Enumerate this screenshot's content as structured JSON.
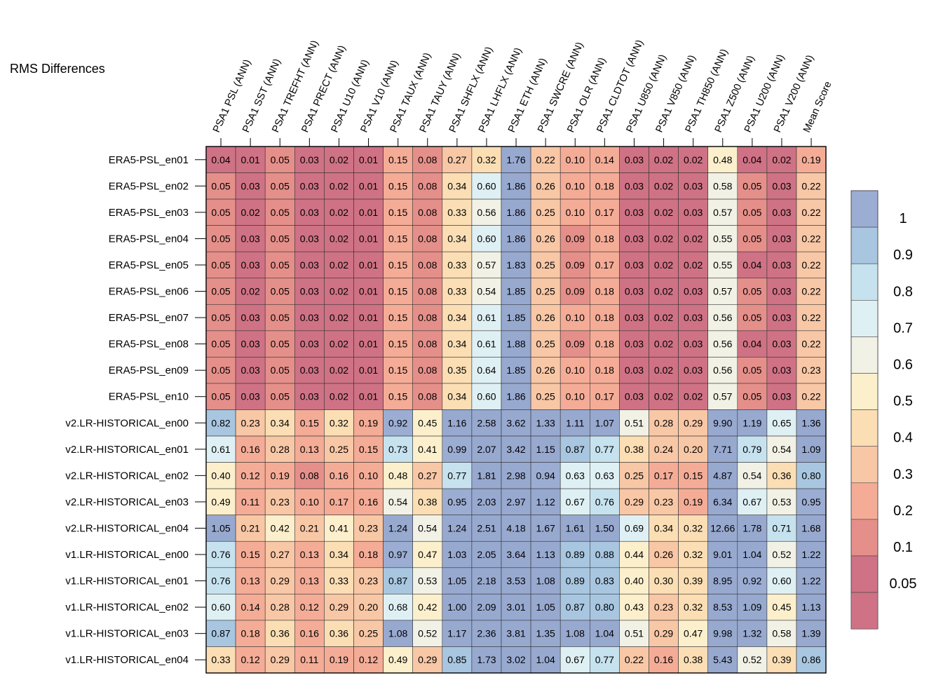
{
  "chart_data": {
    "type": "heatmap",
    "title": "RMS Differences",
    "columns": [
      "PSA1 PSL (ANN)",
      "PSA1 SST (ANN)",
      "PSA1 TREFHT (ANN)",
      "PSA1 PRECT (ANN)",
      "PSA1 U10 (ANN)",
      "PSA1 V10 (ANN)",
      "PSA1 TAUX (ANN)",
      "PSA1 TAUY (ANN)",
      "PSA1 SHFLX (ANN)",
      "PSA1 LHFLX (ANN)",
      "PSA1 ETH (ANN)",
      "PSA1 SWCRE (ANN)",
      "PSA1 OLR (ANN)",
      "PSA1 CLDTOT (ANN)",
      "PSA1 U850 (ANN)",
      "PSA1 V850 (ANN)",
      "PSA1 TH850 (ANN)",
      "PSA1 Z500 (ANN)",
      "PSA1 U200 (ANN)",
      "PSA1 V200 (ANN)",
      "Mean Score"
    ],
    "rows": [
      "ERA5-PSL_en01",
      "ERA5-PSL_en02",
      "ERA5-PSL_en03",
      "ERA5-PSL_en04",
      "ERA5-PSL_en05",
      "ERA5-PSL_en06",
      "ERA5-PSL_en07",
      "ERA5-PSL_en08",
      "ERA5-PSL_en09",
      "ERA5-PSL_en10",
      "v2.LR-HISTORICAL_en00",
      "v2.LR-HISTORICAL_en01",
      "v2.LR-HISTORICAL_en02",
      "v2.LR-HISTORICAL_en03",
      "v2.LR-HISTORICAL_en04",
      "v1.LR-HISTORICAL_en00",
      "v1.LR-HISTORICAL_en01",
      "v1.LR-HISTORICAL_en02",
      "v1.LR-HISTORICAL_en03",
      "v1.LR-HISTORICAL_en04"
    ],
    "values": [
      [
        "0.04",
        "0.01",
        "0.05",
        "0.03",
        "0.02",
        "0.01",
        "0.15",
        "0.08",
        "0.27",
        "0.32",
        "1.76",
        "0.22",
        "0.10",
        "0.14",
        "0.03",
        "0.02",
        "0.02",
        "0.48",
        "0.04",
        "0.02",
        "0.19"
      ],
      [
        "0.05",
        "0.03",
        "0.05",
        "0.03",
        "0.02",
        "0.01",
        "0.15",
        "0.08",
        "0.34",
        "0.60",
        "1.86",
        "0.26",
        "0.10",
        "0.18",
        "0.03",
        "0.02",
        "0.03",
        "0.58",
        "0.05",
        "0.03",
        "0.22"
      ],
      [
        "0.05",
        "0.02",
        "0.05",
        "0.03",
        "0.02",
        "0.01",
        "0.15",
        "0.08",
        "0.33",
        "0.56",
        "1.86",
        "0.25",
        "0.10",
        "0.17",
        "0.03",
        "0.02",
        "0.03",
        "0.57",
        "0.05",
        "0.03",
        "0.22"
      ],
      [
        "0.05",
        "0.03",
        "0.05",
        "0.03",
        "0.02",
        "0.01",
        "0.15",
        "0.08",
        "0.34",
        "0.60",
        "1.86",
        "0.26",
        "0.09",
        "0.18",
        "0.03",
        "0.02",
        "0.02",
        "0.55",
        "0.05",
        "0.03",
        "0.22"
      ],
      [
        "0.05",
        "0.03",
        "0.05",
        "0.03",
        "0.02",
        "0.01",
        "0.15",
        "0.08",
        "0.33",
        "0.57",
        "1.83",
        "0.25",
        "0.09",
        "0.17",
        "0.03",
        "0.02",
        "0.02",
        "0.55",
        "0.04",
        "0.03",
        "0.22"
      ],
      [
        "0.05",
        "0.02",
        "0.05",
        "0.03",
        "0.02",
        "0.01",
        "0.15",
        "0.08",
        "0.33",
        "0.54",
        "1.85",
        "0.25",
        "0.09",
        "0.18",
        "0.03",
        "0.02",
        "0.03",
        "0.57",
        "0.05",
        "0.03",
        "0.22"
      ],
      [
        "0.05",
        "0.03",
        "0.05",
        "0.03",
        "0.02",
        "0.01",
        "0.15",
        "0.08",
        "0.34",
        "0.61",
        "1.85",
        "0.26",
        "0.10",
        "0.18",
        "0.03",
        "0.02",
        "0.03",
        "0.56",
        "0.05",
        "0.03",
        "0.22"
      ],
      [
        "0.05",
        "0.03",
        "0.05",
        "0.03",
        "0.02",
        "0.01",
        "0.15",
        "0.08",
        "0.34",
        "0.61",
        "1.88",
        "0.25",
        "0.09",
        "0.18",
        "0.03",
        "0.02",
        "0.03",
        "0.56",
        "0.04",
        "0.03",
        "0.22"
      ],
      [
        "0.05",
        "0.03",
        "0.05",
        "0.03",
        "0.02",
        "0.01",
        "0.15",
        "0.08",
        "0.35",
        "0.64",
        "1.85",
        "0.26",
        "0.10",
        "0.18",
        "0.03",
        "0.02",
        "0.03",
        "0.56",
        "0.05",
        "0.03",
        "0.23"
      ],
      [
        "0.05",
        "0.03",
        "0.05",
        "0.03",
        "0.02",
        "0.01",
        "0.15",
        "0.08",
        "0.34",
        "0.60",
        "1.86",
        "0.25",
        "0.10",
        "0.17",
        "0.03",
        "0.02",
        "0.02",
        "0.57",
        "0.05",
        "0.03",
        "0.22"
      ],
      [
        "0.82",
        "0.23",
        "0.34",
        "0.15",
        "0.32",
        "0.19",
        "0.92",
        "0.45",
        "1.16",
        "2.58",
        "3.62",
        "1.33",
        "1.11",
        "1.07",
        "0.51",
        "0.28",
        "0.29",
        "9.90",
        "1.19",
        "0.65",
        "1.36"
      ],
      [
        "0.61",
        "0.16",
        "0.28",
        "0.13",
        "0.25",
        "0.15",
        "0.73",
        "0.41",
        "0.99",
        "2.07",
        "3.42",
        "1.15",
        "0.87",
        "0.77",
        "0.38",
        "0.24",
        "0.20",
        "7.71",
        "0.79",
        "0.54",
        "1.09"
      ],
      [
        "0.40",
        "0.12",
        "0.19",
        "0.08",
        "0.16",
        "0.10",
        "0.48",
        "0.27",
        "0.77",
        "1.81",
        "2.98",
        "0.94",
        "0.63",
        "0.63",
        "0.25",
        "0.17",
        "0.15",
        "4.87",
        "0.54",
        "0.36",
        "0.80"
      ],
      [
        "0.49",
        "0.11",
        "0.23",
        "0.10",
        "0.17",
        "0.16",
        "0.54",
        "0.38",
        "0.95",
        "2.03",
        "2.97",
        "1.12",
        "0.67",
        "0.76",
        "0.29",
        "0.23",
        "0.19",
        "6.34",
        "0.67",
        "0.53",
        "0.95"
      ],
      [
        "1.05",
        "0.21",
        "0.42",
        "0.21",
        "0.41",
        "0.23",
        "1.24",
        "0.54",
        "1.24",
        "2.51",
        "4.18",
        "1.67",
        "1.61",
        "1.50",
        "0.69",
        "0.34",
        "0.32",
        "12.66",
        "1.78",
        "0.71",
        "1.68"
      ],
      [
        "0.76",
        "0.15",
        "0.27",
        "0.13",
        "0.34",
        "0.18",
        "0.97",
        "0.47",
        "1.03",
        "2.05",
        "3.64",
        "1.13",
        "0.89",
        "0.88",
        "0.44",
        "0.26",
        "0.32",
        "9.01",
        "1.04",
        "0.52",
        "1.22"
      ],
      [
        "0.76",
        "0.13",
        "0.29",
        "0.13",
        "0.33",
        "0.23",
        "0.87",
        "0.53",
        "1.05",
        "2.18",
        "3.53",
        "1.08",
        "0.89",
        "0.83",
        "0.40",
        "0.30",
        "0.39",
        "8.95",
        "0.92",
        "0.60",
        "1.22"
      ],
      [
        "0.60",
        "0.14",
        "0.28",
        "0.12",
        "0.29",
        "0.20",
        "0.68",
        "0.42",
        "1.00",
        "2.09",
        "3.01",
        "1.05",
        "0.87",
        "0.80",
        "0.43",
        "0.23",
        "0.32",
        "8.53",
        "1.09",
        "0.45",
        "1.13"
      ],
      [
        "0.87",
        "0.18",
        "0.36",
        "0.16",
        "0.36",
        "0.25",
        "1.08",
        "0.52",
        "1.17",
        "2.36",
        "3.81",
        "1.35",
        "1.08",
        "1.04",
        "0.51",
        "0.29",
        "0.47",
        "9.98",
        "1.32",
        "0.58",
        "1.39"
      ],
      [
        "0.33",
        "0.12",
        "0.29",
        "0.11",
        "0.19",
        "0.12",
        "0.49",
        "0.29",
        "0.85",
        "1.73",
        "3.02",
        "1.04",
        "0.67",
        "0.77",
        "0.22",
        "0.16",
        "0.38",
        "5.43",
        "0.52",
        "0.39",
        "0.86"
      ]
    ],
    "colorbar": {
      "labels": [
        "1",
        "0.9",
        "0.8",
        "0.7",
        "0.6",
        "0.5",
        "0.4",
        "0.3",
        "0.2",
        "0.1",
        "0.05"
      ],
      "thresholds": [
        0.05,
        0.1,
        0.2,
        0.3,
        0.4,
        0.5,
        0.6,
        0.7,
        0.8,
        0.9,
        1
      ],
      "colors": [
        "#cf7285",
        "#e58f8a",
        "#f4ac97",
        "#f8c7a6",
        "#fbdeb4",
        "#fcefcc",
        "#f1f1e6",
        "#dff0f4",
        "#c6e2ee",
        "#a8c6e0",
        "#9cadd3",
        "#98a9d0"
      ]
    }
  }
}
